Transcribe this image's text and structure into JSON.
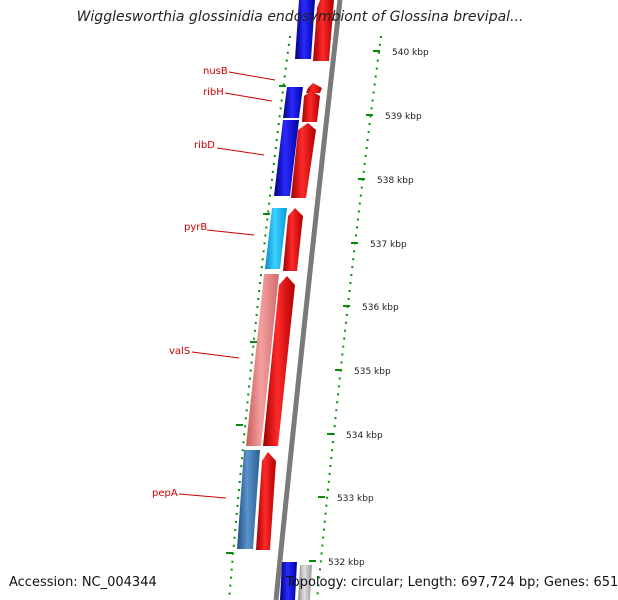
{
  "header": {
    "title": "Wigglesworthia glossinidia endosymbiont of Glossina brevipal..."
  },
  "footer": {
    "accession": "Accession: NC_004344",
    "summary": "Topology: circular; Length: 697,724 bp; Genes: 651"
  },
  "colors": {
    "label": "#cc0000",
    "tick": "#0a8a0a",
    "backbone": "#7a7a7a",
    "forward_blue": "#1a1aee",
    "reverse_red": "#ee1111",
    "light_blue": "#1ab8f0",
    "salmon": "#e87a7a",
    "steel_blue": "#3a7ab8",
    "grey_feature": "#b5b5b5"
  },
  "scale_ticks": [
    {
      "label": "540 kbp"
    },
    {
      "label": "539 kbp"
    },
    {
      "label": "538 kbp"
    },
    {
      "label": "537 kbp"
    },
    {
      "label": "536 kbp"
    },
    {
      "label": "535 kbp"
    },
    {
      "label": "534 kbp"
    },
    {
      "label": "533 kbp"
    },
    {
      "label": "532 kbp"
    }
  ],
  "gene_labels": [
    {
      "name": "nusB"
    },
    {
      "name": "ribH"
    },
    {
      "name": "ribD"
    },
    {
      "name": "pyrB"
    },
    {
      "name": "valS"
    },
    {
      "name": "pepA"
    }
  ]
}
